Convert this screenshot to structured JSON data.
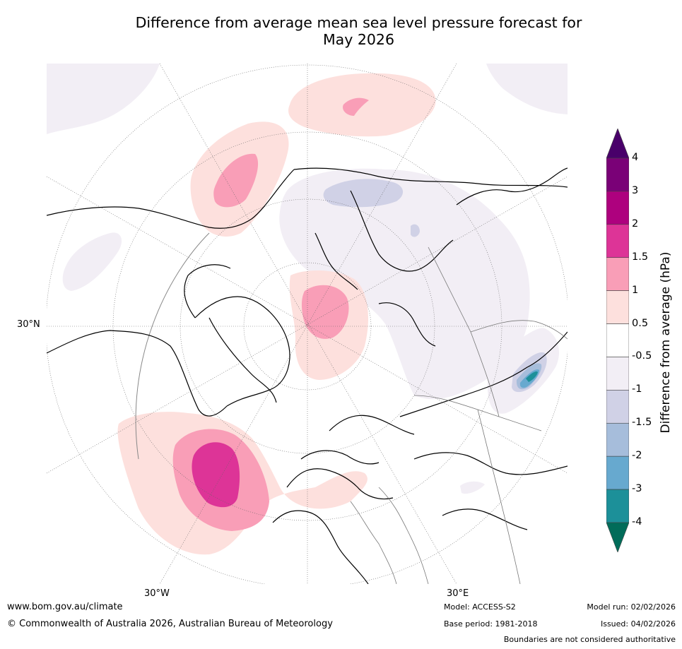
{
  "title": {
    "line1": "Difference from average mean sea level pressure forecast for",
    "line2": "May 2026"
  },
  "map": {
    "projection": "north-polar-stereographic",
    "labels": {
      "lat30n": "30°N",
      "lon30w": "30°W",
      "lon30e": "30°E"
    },
    "colors": {
      "pos_0_5_1": "#fde0dd",
      "pos_1_1_5": "#f99eb7",
      "pos_1_5_2": "#dd3497",
      "neg_0_5_1": "#f2eef5",
      "neg_1_1_5": "#d0d1e6",
      "neg_1_5_2": "#a6bddb",
      "neg_2_3": "#67a9cf",
      "neg_3_4": "#1c9099"
    }
  },
  "colorbar": {
    "title": "Difference from average (hPa)",
    "ticks": [
      "4",
      "3",
      "2",
      "1.5",
      "1",
      "0.5",
      "-0.5",
      "-1",
      "-1.5",
      "-2",
      "-3",
      "-4"
    ],
    "bins": [
      {
        "color": "#7a0177"
      },
      {
        "color": "#ae017e"
      },
      {
        "color": "#dd3497"
      },
      {
        "color": "#f99eb7"
      },
      {
        "color": "#fde0dd"
      },
      {
        "color": "#ffffff"
      },
      {
        "color": "#f2eef5"
      },
      {
        "color": "#d0d1e6"
      },
      {
        "color": "#a6bddb"
      },
      {
        "color": "#67a9cf"
      },
      {
        "color": "#1c9099"
      }
    ],
    "top_extend_color": "#49006a",
    "bottom_extend_color": "#016c59"
  },
  "footer": {
    "website": "www.bom.gov.au/climate",
    "copyright": "© Commonwealth of Australia 2026, Australian Bureau of Meteorology",
    "model": "Model: ACCESS-S2",
    "base_period": "Base period: 1981-2018",
    "model_run": "Model run: 02/02/2026",
    "issued": "Issued: 04/02/2026",
    "disclaimer": "Boundaries are not considered authoritative"
  }
}
